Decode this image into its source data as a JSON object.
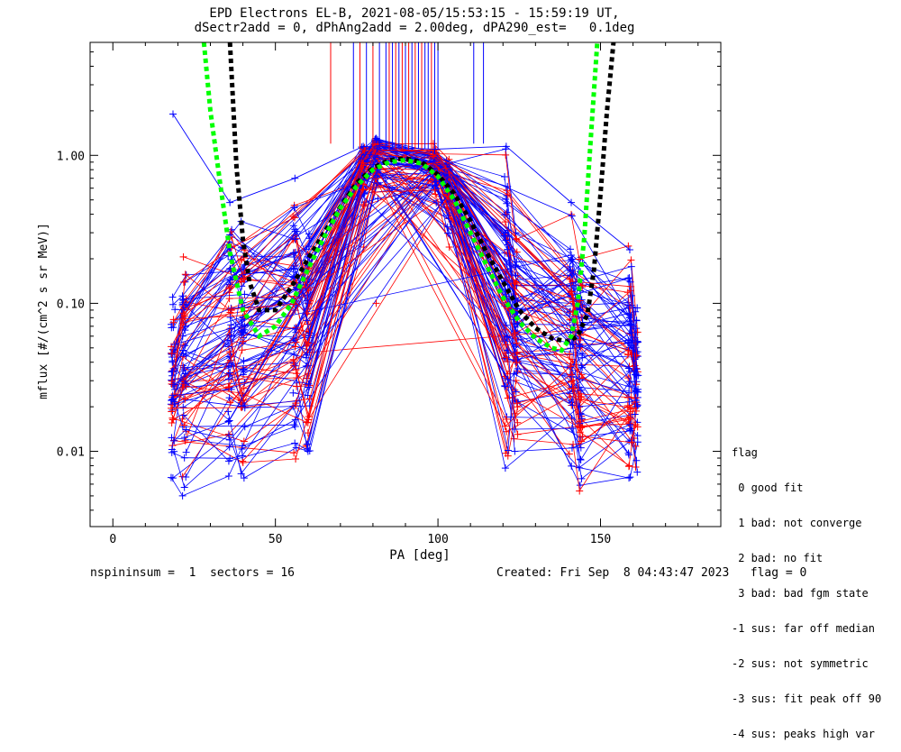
{
  "title": {
    "line1": "EPD Electrons EL-B, 2021-08-05/15:53:15 - 15:59:19 UT,",
    "line2": "dSectr2add = 0, dPhAng2add = 2.00deg, dPA290_est=   0.1deg"
  },
  "footer": {
    "left": "nspininsum =  1  sectors = 16",
    "right": "Created: Fri Sep  8 04:43:47 2023   flag = 0"
  },
  "legend": {
    "title": "flag",
    "items": [
      " 0 good fit",
      " 1 bad: not converge",
      " 2 bad: no fit",
      " 3 bad: bad fgm state",
      "-1 sus: far off median",
      "-2 sus: not symmetric",
      "-3 sus: fit peak off 90",
      "-4 sus: peaks high var"
    ]
  },
  "colors": {
    "blue": "#0000ff",
    "red": "#ff0000",
    "green": "#00ff00",
    "black": "#000000"
  },
  "chart_data": {
    "type": "line",
    "title": "EPD Electrons EL-B, 2021-08-05/15:53:15 - 15:59:19 UT,",
    "subtitle": "dSectr2add = 0, dPhAng2add = 2.00deg, dPA290_est=   0.1deg",
    "xlabel": "PA [deg]",
    "ylabel": "mflux [#/(cm^2 s sr MeV)]",
    "xlim": [
      -7,
      187
    ],
    "ylim": [
      0.0031,
      5.8
    ],
    "yscale": "log",
    "xticks": [
      0,
      50,
      100,
      150
    ],
    "xticklabels": [
      "0",
      "50",
      "100",
      "150"
    ],
    "yticks": [
      0.01,
      0.1,
      1.0
    ],
    "yticklabels": [
      "0.01",
      "0.10",
      "1.00"
    ],
    "pa_bins": [
      18.5,
      22,
      36,
      40,
      56,
      60,
      77,
      81,
      99,
      103,
      121,
      124,
      141,
      144,
      159,
      161
    ],
    "series": [
      {
        "color": "blue",
        "fit": true,
        "x": [
          18.5,
          36,
          56,
          77,
          99,
          121,
          141,
          159
        ],
        "y": [
          1.9,
          0.48,
          0.7,
          1.15,
          1.1,
          1.15,
          0.48,
          0.23
        ]
      },
      {
        "color": "red",
        "fit": false,
        "x": [
          81
        ],
        "y": [
          0.1
        ]
      }
    ],
    "band_profile": {
      "x": [
        18.5,
        22,
        36,
        40,
        56,
        60,
        77,
        81,
        99,
        103,
        121,
        124,
        141,
        144,
        159,
        161
      ],
      "low": [
        0.0066,
        0.005,
        0.0068,
        0.0066,
        0.0083,
        0.01,
        0.24,
        0.36,
        0.31,
        0.24,
        0.0077,
        0.01,
        0.0066,
        0.0054,
        0.0066,
        0.0072
      ],
      "high": [
        0.11,
        0.28,
        0.48,
        0.4,
        0.7,
        0.38,
        1.2,
        1.35,
        1.2,
        0.95,
        1.15,
        0.3,
        0.48,
        0.3,
        0.3,
        0.1
      ]
    },
    "vertical_ticks": {
      "x": [
        67,
        74,
        76,
        78,
        80,
        82,
        84,
        85,
        86,
        87,
        88,
        89,
        90,
        91,
        92,
        93,
        94,
        95,
        96,
        97,
        98,
        99,
        100,
        111,
        114
      ],
      "colors": [
        "red",
        "blue",
        "red",
        "blue",
        "red",
        "blue",
        "blue",
        "red",
        "blue",
        "red",
        "blue",
        "red",
        "blue",
        "red",
        "blue",
        "red",
        "blue",
        "red",
        "blue",
        "blue",
        "red",
        "blue",
        "blue",
        "blue",
        "blue"
      ]
    },
    "fit_curves": [
      {
        "color": "black",
        "style": "dashed",
        "x": [
          36,
          38,
          40,
          42,
          45,
          50,
          55,
          60,
          65,
          70,
          75,
          80,
          85,
          90,
          95,
          100,
          105,
          110,
          115,
          120,
          125,
          130,
          135,
          140,
          143,
          146,
          148,
          150,
          152,
          154
        ],
        "y": [
          5.8,
          0.85,
          0.27,
          0.14,
          0.09,
          0.09,
          0.13,
          0.2,
          0.3,
          0.45,
          0.65,
          0.82,
          0.93,
          0.95,
          0.9,
          0.74,
          0.55,
          0.36,
          0.22,
          0.14,
          0.09,
          0.068,
          0.058,
          0.055,
          0.06,
          0.085,
          0.17,
          0.55,
          2.0,
          5.8
        ]
      },
      {
        "color": "green",
        "style": "dashed",
        "x": [
          28,
          30,
          33,
          36,
          40,
          45,
          50,
          55,
          60,
          65,
          70,
          75,
          80,
          85,
          90,
          95,
          100,
          105,
          110,
          115,
          120,
          125,
          130,
          135,
          138,
          141,
          143,
          145,
          147,
          149
        ],
        "y": [
          5.8,
          2.0,
          0.65,
          0.22,
          0.09,
          0.06,
          0.07,
          0.1,
          0.17,
          0.28,
          0.44,
          0.62,
          0.8,
          0.9,
          0.93,
          0.88,
          0.72,
          0.5,
          0.3,
          0.18,
          0.11,
          0.075,
          0.058,
          0.05,
          0.048,
          0.06,
          0.1,
          0.28,
          1.3,
          5.8
        ]
      }
    ]
  }
}
